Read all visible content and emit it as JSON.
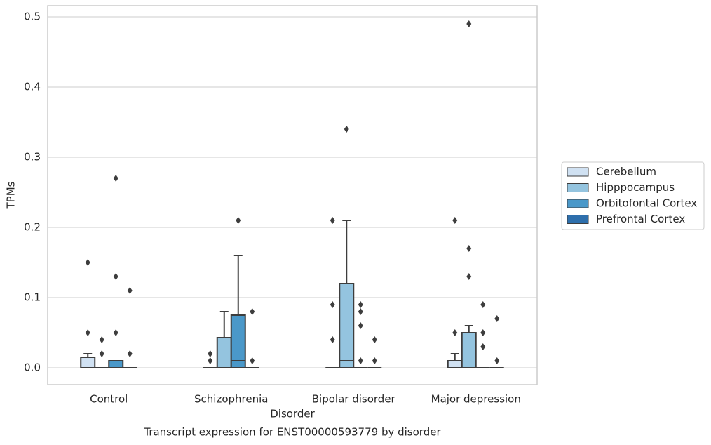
{
  "chart_data": {
    "type": "box",
    "title": "Transcript expression for ENST00000593779 by disorder",
    "x_label": "Disorder",
    "y_label": "TPMs",
    "categories": [
      "Control",
      "Schizophrenia",
      "Bipolar disorder",
      "Major depression"
    ],
    "ylim": [
      -0.024,
      0.516
    ],
    "yticks": [
      {
        "value": 0,
        "label": "0.0"
      },
      0.1,
      0.2,
      0.3,
      0.4,
      0.5
    ],
    "grid": true,
    "legend": "right",
    "series": [
      {
        "name": "Cerebellum",
        "color": "#d0e1f2",
        "boxes": [
          {
            "min": 0,
            "q1": 0,
            "median": 0,
            "q3": 0.015,
            "max": 0.02,
            "outliers": [
              0.15,
              0.05
            ]
          },
          {
            "min": 0,
            "q1": 0,
            "median": 0,
            "q3": 0,
            "max": 0,
            "outliers": [
              0.02,
              0.01
            ]
          },
          {
            "min": 0,
            "q1": 0,
            "median": 0,
            "q3": 0,
            "max": 0,
            "outliers": [
              0.21,
              0.09,
              0.04
            ]
          },
          {
            "min": 0,
            "q1": 0,
            "median": 0,
            "q3": 0.01,
            "max": 0.02,
            "outliers": [
              0.21,
              0.05
            ]
          }
        ]
      },
      {
        "name": "Hipppocampus",
        "color": "#94c4df",
        "boxes": [
          {
            "min": 0,
            "q1": 0,
            "median": 0,
            "q3": 0,
            "max": 0,
            "outliers": [
              0.04,
              0.02
            ]
          },
          {
            "min": 0,
            "q1": 0,
            "median": 0,
            "q3": 0.043,
            "max": 0.08,
            "outliers": []
          },
          {
            "min": 0,
            "q1": 0,
            "median": 0.01,
            "q3": 0.12,
            "max": 0.21,
            "outliers": [
              0.34
            ]
          },
          {
            "min": 0,
            "q1": 0,
            "median": 0,
            "q3": 0.05,
            "max": 0.06,
            "outliers": [
              0.49,
              0.17,
              0.13
            ]
          }
        ]
      },
      {
        "name": "Orbitofontal Cortex",
        "color": "#4a98c9",
        "boxes": [
          {
            "min": 0,
            "q1": 0,
            "median": 0,
            "q3": 0.01,
            "max": 0.01,
            "outliers": [
              0.27,
              0.13,
              0.05
            ]
          },
          {
            "min": 0,
            "q1": 0,
            "median": 0.01,
            "q3": 0.075,
            "max": 0.16,
            "outliers": [
              0.21
            ]
          },
          {
            "min": 0,
            "q1": 0,
            "median": 0,
            "q3": 0,
            "max": 0,
            "outliers": [
              0.09,
              0.08,
              0.06,
              0.01
            ]
          },
          {
            "min": 0,
            "q1": 0,
            "median": 0,
            "q3": 0,
            "max": 0,
            "outliers": [
              0.09,
              0.05,
              0.03
            ]
          }
        ]
      },
      {
        "name": "Prefrontal Cortex",
        "color": "#2e6fac",
        "boxes": [
          {
            "min": 0,
            "q1": 0,
            "median": 0,
            "q3": 0,
            "max": 0,
            "outliers": [
              0.11,
              0.02
            ]
          },
          {
            "min": 0,
            "q1": 0,
            "median": 0,
            "q3": 0,
            "max": 0,
            "outliers": [
              0.08,
              0.01
            ]
          },
          {
            "min": 0,
            "q1": 0,
            "median": 0,
            "q3": 0,
            "max": 0,
            "outliers": [
              0.04,
              0.01
            ]
          },
          {
            "min": 0,
            "q1": 0,
            "median": 0,
            "q3": 0,
            "max": 0,
            "outliers": [
              0.07,
              0.01
            ]
          }
        ]
      }
    ]
  }
}
